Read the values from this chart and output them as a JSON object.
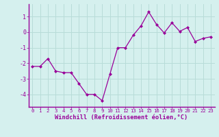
{
  "x": [
    0,
    1,
    2,
    3,
    4,
    5,
    6,
    7,
    8,
    9,
    10,
    11,
    12,
    13,
    14,
    15,
    16,
    17,
    18,
    19,
    20,
    21,
    22,
    23
  ],
  "y": [
    -2.2,
    -2.2,
    -1.7,
    -2.5,
    -2.6,
    -2.6,
    -3.3,
    -4.0,
    -4.0,
    -4.4,
    -2.7,
    -1.0,
    -1.0,
    -0.2,
    0.4,
    1.3,
    0.5,
    -0.05,
    0.6,
    0.05,
    0.3,
    -0.6,
    -0.4,
    -0.3
  ],
  "line_color": "#990099",
  "marker": "D",
  "marker_size": 2.0,
  "bg_color": "#d5f0ee",
  "grid_color": "#b8dcd8",
  "xlabel": "Windchill (Refroidissement éolien,°C)",
  "tick_color": "#990099",
  "ylim": [
    -4.8,
    1.8
  ],
  "yticks": [
    -4,
    -3,
    -2,
    -1,
    0,
    1
  ],
  "xlim": [
    -0.5,
    23.5
  ],
  "xticks": [
    0,
    1,
    2,
    3,
    4,
    5,
    6,
    7,
    8,
    9,
    10,
    11,
    12,
    13,
    14,
    15,
    16,
    17,
    18,
    19,
    20,
    21,
    22,
    23
  ],
  "xtick_fontsize": 5.2,
  "ytick_fontsize": 6.0,
  "xlabel_fontsize": 6.2
}
